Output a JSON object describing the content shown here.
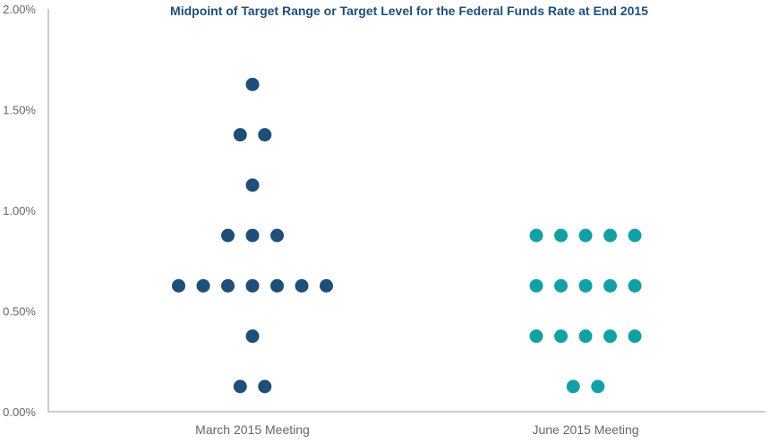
{
  "chart_data": {
    "type": "scatter",
    "title": "Midpoint of Target Range or Target Level for the Federal Funds Rate at End 2015",
    "xlabel": "",
    "ylabel": "",
    "categories": [
      "March 2015 Meeting",
      "June 2015 Meeting"
    ],
    "ylim": [
      0,
      2.0
    ],
    "yticks": [
      {
        "value": 0.0,
        "label": "0.00%"
      },
      {
        "value": 0.5,
        "label": "0.50%"
      },
      {
        "value": 1.0,
        "label": "1.00%"
      },
      {
        "value": 1.5,
        "label": "1.50%"
      },
      {
        "value": 2.0,
        "label": "2.00%"
      }
    ],
    "grid": false,
    "series": [
      {
        "category": "March 2015 Meeting",
        "color": "#1f4e79",
        "points": [
          {
            "y": 1.625,
            "count": 1
          },
          {
            "y": 1.375,
            "count": 2
          },
          {
            "y": 1.125,
            "count": 1
          },
          {
            "y": 0.875,
            "count": 3
          },
          {
            "y": 0.625,
            "count": 7
          },
          {
            "y": 0.375,
            "count": 1
          },
          {
            "y": 0.125,
            "count": 2
          }
        ]
      },
      {
        "category": "June 2015 Meeting",
        "color": "#13a0a5",
        "points": [
          {
            "y": 0.875,
            "count": 5
          },
          {
            "y": 0.625,
            "count": 5
          },
          {
            "y": 0.375,
            "count": 5
          },
          {
            "y": 0.125,
            "count": 2
          }
        ]
      }
    ]
  }
}
